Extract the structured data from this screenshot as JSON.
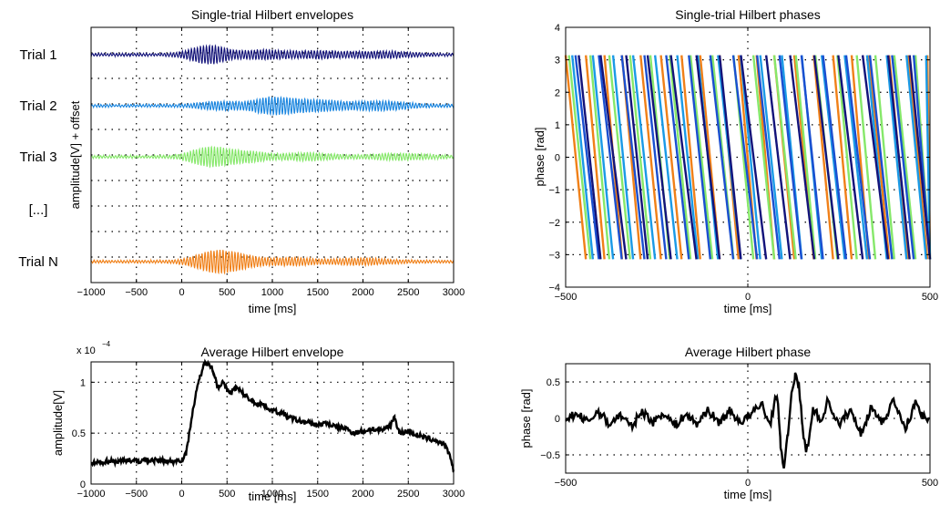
{
  "chart_data": [
    {
      "type": "line",
      "title": "Single-trial Hilbert envelopes",
      "xlabel": "time [ms]",
      "ylabel": "amplitude[V] + offset",
      "xlim": [
        -1000,
        3000
      ],
      "xticks": [
        "−1000",
        "−500",
        "0",
        "500",
        "1000",
        "1500",
        "2000",
        "2500",
        "3000"
      ],
      "grid": true,
      "row_labels": [
        "Trial 1",
        "Trial 2",
        "Trial 3",
        "[...]",
        "Trial N"
      ],
      "series": [
        {
          "color": "#13137a",
          "burst_centers_ms": [
            300,
            900,
            1500,
            2200
          ],
          "burst_gains": [
            1.0,
            0.45,
            0.35,
            0.3
          ]
        },
        {
          "color": "#1a86e0",
          "burst_centers_ms": [
            400,
            1000,
            1500,
            2200
          ],
          "burst_gains": [
            0.4,
            0.9,
            0.55,
            0.45
          ]
        },
        {
          "color": "#86e86a",
          "burst_centers_ms": [
            300,
            700,
            1400,
            2400
          ],
          "burst_gains": [
            1.0,
            0.55,
            0.35,
            0.3
          ]
        },
        {
          "color": "#f08018",
          "burst_centers_ms": [
            300,
            550,
            1200,
            2000
          ],
          "burst_gains": [
            0.7,
            0.85,
            0.35,
            0.3
          ]
        }
      ]
    },
    {
      "type": "line",
      "title": "Single-trial Hilbert phases",
      "xlabel": "time [ms]",
      "ylabel": "phase [rad]",
      "xlim": [
        -500,
        500
      ],
      "ylim": [
        -4,
        4
      ],
      "xticks": [
        "−500",
        "0",
        "500"
      ],
      "yticks": [
        "−4",
        "−3",
        "−2",
        "−1",
        "0",
        "1",
        "2",
        "3",
        "4"
      ],
      "grid": true,
      "series": [
        {
          "color": "#f08018"
        },
        {
          "color": "#86e86a"
        },
        {
          "color": "#1a9ae6"
        },
        {
          "color": "#1a4fd0"
        },
        {
          "color": "#13137a"
        }
      ]
    },
    {
      "type": "line",
      "title": "Average Hilbert envelope",
      "xlabel": "time [ms]",
      "ylabel": "amplitude[V]",
      "scale_label": "x 10",
      "scale_exp": "−4",
      "xlim": [
        -1000,
        3000
      ],
      "ylim": [
        0,
        1.2
      ],
      "xticks": [
        "−1000",
        "−500",
        "0",
        "500",
        "1000",
        "1500",
        "2000",
        "2500",
        "3000"
      ],
      "yticks": [
        "0",
        "0.5",
        "1"
      ],
      "grid": true,
      "x": [
        -1000,
        -900,
        -800,
        -700,
        -600,
        -500,
        -400,
        -300,
        -200,
        -100,
        0,
        50,
        100,
        150,
        200,
        250,
        300,
        350,
        400,
        450,
        500,
        550,
        600,
        700,
        800,
        900,
        1000,
        1100,
        1200,
        1300,
        1400,
        1500,
        1600,
        1700,
        1800,
        1900,
        2000,
        2100,
        2200,
        2300,
        2350,
        2400,
        2500,
        2600,
        2700,
        2800,
        2900,
        2950,
        3000
      ],
      "y": [
        0.2,
        0.21,
        0.23,
        0.22,
        0.24,
        0.22,
        0.24,
        0.23,
        0.23,
        0.22,
        0.24,
        0.3,
        0.6,
        0.85,
        1.05,
        1.18,
        1.2,
        1.1,
        0.95,
        1.0,
        0.92,
        0.9,
        0.95,
        0.87,
        0.8,
        0.78,
        0.72,
        0.7,
        0.65,
        0.62,
        0.6,
        0.58,
        0.6,
        0.56,
        0.55,
        0.5,
        0.52,
        0.54,
        0.52,
        0.58,
        0.66,
        0.5,
        0.52,
        0.48,
        0.45,
        0.43,
        0.38,
        0.3,
        0.12
      ]
    },
    {
      "type": "line",
      "title": "Average Hilbert phase",
      "xlabel": "time [ms]",
      "ylabel": "phase [rad]",
      "xlim": [
        -500,
        500
      ],
      "ylim": [
        -0.75,
        0.75
      ],
      "xticks": [
        "−500",
        "0",
        "500"
      ],
      "yticks": [
        "−0.5",
        "0",
        "0.5"
      ],
      "grid": true,
      "x": [
        -500,
        -470,
        -440,
        -410,
        -380,
        -350,
        -320,
        -290,
        -260,
        -230,
        -200,
        -170,
        -140,
        -110,
        -80,
        -50,
        -20,
        10,
        40,
        60,
        80,
        90,
        100,
        110,
        120,
        130,
        140,
        150,
        160,
        170,
        180,
        200,
        220,
        250,
        280,
        310,
        340,
        370,
        400,
        430,
        460,
        490,
        500
      ],
      "y": [
        0.0,
        0.06,
        -0.05,
        0.1,
        -0.08,
        0.05,
        -0.12,
        0.1,
        -0.05,
        0.08,
        -0.1,
        0.06,
        -0.08,
        0.12,
        -0.06,
        0.1,
        -0.05,
        0.06,
        0.2,
        -0.1,
        0.35,
        -0.35,
        -0.7,
        -0.2,
        0.3,
        0.62,
        0.45,
        -0.1,
        -0.5,
        -0.2,
        0.15,
        -0.05,
        0.25,
        -0.1,
        0.12,
        -0.2,
        0.15,
        -0.05,
        0.25,
        -0.15,
        0.2,
        -0.05,
        0.05
      ]
    }
  ]
}
